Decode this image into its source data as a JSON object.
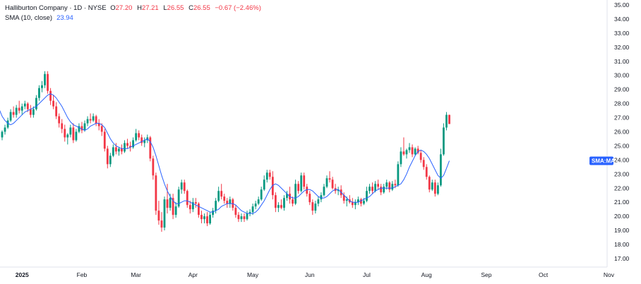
{
  "legend": {
    "symbol": "Halliburton Company · 1D · NYSE",
    "open_key": "O",
    "open": "27.20",
    "high_key": "H",
    "high": "27.21",
    "low_key": "L",
    "low": "26.55",
    "close_key": "C",
    "close": "26.55",
    "change": "−0.67 (−2.46%)",
    "sma_label": "SMA (10, close)",
    "sma_value": "23.94"
  },
  "badge_label": "SMA:MA",
  "colors": {
    "up": "#089981",
    "down": "#f23645",
    "sma": "#2962ff",
    "badge": "#2962ff"
  },
  "chart_data": {
    "type": "candlestick",
    "y_ticks": [
      "17.00",
      "18.00",
      "19.00",
      "20.00",
      "21.00",
      "22.00",
      "23.00",
      "24.00",
      "25.00",
      "26.00",
      "27.00",
      "28.00",
      "29.00",
      "30.00",
      "31.00",
      "32.00",
      "33.00",
      "34.00",
      "35.00"
    ],
    "ylim": [
      16.5,
      35.2
    ],
    "month_labels": [
      {
        "label": "2025",
        "index": 7
      },
      {
        "label": "Feb",
        "index": 28
      },
      {
        "label": "Mar",
        "index": 47
      },
      {
        "label": "Apr",
        "index": 67
      },
      {
        "label": "May",
        "index": 88
      },
      {
        "label": "Jun",
        "index": 108
      },
      {
        "label": "Jul",
        "index": 128
      },
      {
        "label": "Aug",
        "index": 149
      },
      {
        "label": "Sep",
        "index": 170
      },
      {
        "label": "Oct",
        "index": 190
      },
      {
        "label": "Nov",
        "index": 213
      }
    ],
    "candles": [
      [
        25.6,
        26.1,
        25.4,
        26.0
      ],
      [
        26.0,
        26.5,
        25.8,
        26.3
      ],
      [
        26.3,
        27.0,
        26.2,
        26.8
      ],
      [
        26.8,
        27.6,
        26.7,
        27.4
      ],
      [
        27.4,
        27.8,
        27.0,
        27.2
      ],
      [
        27.2,
        27.9,
        27.0,
        27.7
      ],
      [
        27.7,
        28.2,
        27.3,
        27.5
      ],
      [
        27.5,
        28.0,
        27.2,
        27.8
      ],
      [
        27.8,
        28.2,
        27.6,
        28.0
      ],
      [
        28.0,
        28.1,
        27.4,
        27.6
      ],
      [
        27.6,
        27.9,
        27.0,
        27.2
      ],
      [
        27.2,
        27.8,
        27.0,
        27.6
      ],
      [
        27.6,
        28.6,
        27.5,
        28.4
      ],
      [
        28.4,
        29.3,
        28.2,
        29.1
      ],
      [
        29.1,
        29.6,
        28.8,
        29.3
      ],
      [
        29.3,
        30.3,
        29.1,
        30.1
      ],
      [
        30.1,
        30.3,
        28.7,
        28.9
      ],
      [
        28.9,
        29.1,
        27.9,
        28.2
      ],
      [
        28.2,
        28.6,
        27.6,
        27.8
      ],
      [
        27.8,
        28.1,
        26.9,
        27.1
      ],
      [
        27.1,
        27.3,
        26.3,
        26.6
      ],
      [
        26.6,
        26.9,
        25.9,
        26.2
      ],
      [
        26.2,
        26.5,
        25.3,
        25.6
      ],
      [
        25.6,
        25.9,
        25.1,
        25.8
      ],
      [
        25.8,
        26.5,
        25.6,
        26.3
      ],
      [
        26.3,
        26.6,
        25.2,
        25.4
      ],
      [
        25.4,
        26.2,
        25.3,
        26.0
      ],
      [
        26.0,
        26.6,
        25.9,
        26.4
      ],
      [
        26.4,
        26.7,
        25.9,
        26.1
      ],
      [
        26.1,
        26.8,
        26.0,
        26.6
      ],
      [
        26.6,
        27.1,
        26.4,
        26.9
      ],
      [
        26.9,
        27.3,
        26.6,
        26.8
      ],
      [
        26.8,
        27.3,
        26.7,
        27.1
      ],
      [
        27.1,
        27.2,
        26.4,
        26.6
      ],
      [
        26.6,
        26.9,
        26.1,
        26.4
      ],
      [
        26.4,
        26.6,
        25.7,
        26.0
      ],
      [
        26.0,
        26.2,
        24.6,
        24.8
      ],
      [
        24.8,
        25.0,
        23.4,
        23.7
      ],
      [
        23.7,
        24.5,
        23.5,
        24.3
      ],
      [
        24.3,
        25.1,
        24.2,
        24.9
      ],
      [
        24.9,
        25.2,
        24.4,
        24.6
      ],
      [
        24.6,
        24.9,
        24.3,
        24.8
      ],
      [
        24.8,
        25.1,
        24.4,
        24.6
      ],
      [
        24.6,
        25.4,
        24.5,
        25.2
      ],
      [
        25.2,
        25.5,
        24.8,
        25.0
      ],
      [
        25.0,
        25.3,
        24.6,
        24.9
      ],
      [
        24.9,
        25.6,
        24.8,
        25.4
      ],
      [
        25.4,
        26.2,
        25.3,
        25.9
      ],
      [
        25.9,
        26.1,
        25.4,
        25.6
      ],
      [
        25.6,
        25.8,
        25.0,
        25.2
      ],
      [
        25.2,
        25.6,
        24.9,
        25.4
      ],
      [
        25.4,
        25.8,
        25.2,
        25.6
      ],
      [
        25.6,
        25.7,
        23.9,
        24.1
      ],
      [
        24.1,
        24.3,
        22.6,
        22.9
      ],
      [
        22.9,
        23.1,
        20.1,
        20.4
      ],
      [
        20.4,
        21.1,
        19.4,
        19.7
      ],
      [
        19.7,
        20.3,
        18.9,
        19.2
      ],
      [
        19.2,
        21.4,
        19.0,
        21.2
      ],
      [
        21.2,
        22.3,
        20.2,
        20.6
      ],
      [
        20.6,
        21.6,
        20.4,
        21.3
      ],
      [
        21.3,
        21.6,
        19.8,
        20.1
      ],
      [
        20.1,
        21.0,
        19.9,
        20.7
      ],
      [
        20.7,
        22.1,
        20.6,
        21.9
      ],
      [
        21.9,
        22.6,
        21.6,
        22.4
      ],
      [
        22.4,
        22.6,
        21.6,
        21.8
      ],
      [
        21.8,
        21.9,
        20.6,
        20.8
      ],
      [
        20.8,
        21.1,
        20.2,
        20.5
      ],
      [
        20.5,
        21.3,
        20.3,
        21.0
      ],
      [
        21.0,
        21.3,
        20.6,
        20.9
      ],
      [
        20.9,
        21.0,
        19.9,
        20.1
      ],
      [
        20.1,
        20.4,
        19.5,
        19.8
      ],
      [
        19.8,
        20.2,
        19.5,
        20.0
      ],
      [
        20.0,
        20.3,
        19.3,
        19.5
      ],
      [
        19.5,
        20.3,
        19.4,
        20.1
      ],
      [
        20.1,
        20.6,
        19.9,
        20.4
      ],
      [
        20.4,
        21.3,
        20.2,
        21.1
      ],
      [
        21.1,
        22.1,
        21.0,
        21.8
      ],
      [
        21.8,
        22.3,
        21.2,
        21.4
      ],
      [
        21.4,
        21.6,
        20.9,
        21.1
      ],
      [
        21.1,
        21.3,
        20.6,
        20.9
      ],
      [
        20.9,
        21.4,
        20.6,
        21.2
      ],
      [
        21.2,
        21.3,
        20.4,
        20.6
      ],
      [
        20.6,
        20.8,
        19.9,
        20.1
      ],
      [
        20.1,
        20.3,
        19.6,
        19.8
      ],
      [
        19.8,
        20.2,
        19.6,
        20.0
      ],
      [
        20.0,
        20.2,
        19.6,
        19.8
      ],
      [
        19.8,
        20.4,
        19.7,
        20.2
      ],
      [
        20.2,
        20.5,
        20.0,
        20.3
      ],
      [
        20.3,
        20.9,
        20.1,
        20.7
      ],
      [
        20.7,
        21.1,
        20.5,
        20.9
      ],
      [
        20.9,
        21.4,
        20.8,
        21.2
      ],
      [
        21.2,
        22.1,
        21.1,
        21.9
      ],
      [
        21.9,
        22.9,
        21.8,
        22.6
      ],
      [
        22.6,
        23.3,
        22.4,
        23.1
      ],
      [
        23.1,
        23.3,
        22.6,
        22.8
      ],
      [
        22.8,
        23.2,
        21.2,
        21.5
      ],
      [
        21.5,
        21.7,
        20.3,
        20.6
      ],
      [
        20.6,
        21.0,
        20.3,
        20.8
      ],
      [
        20.8,
        21.2,
        20.5,
        20.6
      ],
      [
        20.6,
        21.5,
        20.4,
        21.3
      ],
      [
        21.3,
        21.8,
        21.1,
        21.6
      ],
      [
        21.6,
        22.1,
        20.9,
        21.2
      ],
      [
        21.2,
        21.4,
        20.7,
        20.9
      ],
      [
        20.9,
        22.6,
        20.8,
        22.3
      ],
      [
        22.3,
        22.5,
        21.6,
        21.8
      ],
      [
        21.8,
        23.1,
        21.7,
        22.9
      ],
      [
        22.9,
        23.1,
        21.9,
        22.1
      ],
      [
        22.1,
        22.3,
        21.4,
        21.6
      ],
      [
        21.6,
        21.8,
        20.8,
        21.0
      ],
      [
        21.0,
        21.2,
        20.1,
        20.4
      ],
      [
        20.4,
        21.1,
        20.2,
        20.9
      ],
      [
        20.9,
        21.4,
        20.7,
        21.2
      ],
      [
        21.2,
        21.7,
        21.0,
        21.5
      ],
      [
        21.5,
        22.3,
        21.4,
        22.1
      ],
      [
        22.1,
        22.9,
        22.0,
        22.7
      ],
      [
        22.7,
        23.2,
        22.4,
        22.6
      ],
      [
        22.6,
        22.8,
        21.9,
        22.0
      ],
      [
        22.0,
        22.3,
        21.6,
        21.8
      ],
      [
        21.8,
        22.1,
        21.5,
        21.9
      ],
      [
        21.9,
        22.2,
        21.3,
        21.5
      ],
      [
        21.5,
        21.7,
        20.9,
        21.1
      ],
      [
        21.1,
        21.4,
        20.7,
        21.2
      ],
      [
        21.2,
        21.5,
        20.9,
        21.0
      ],
      [
        21.0,
        21.3,
        20.6,
        20.8
      ],
      [
        20.8,
        21.2,
        20.5,
        21.0
      ],
      [
        21.0,
        21.4,
        20.8,
        21.2
      ],
      [
        21.2,
        21.3,
        20.7,
        20.9
      ],
      [
        20.9,
        21.3,
        20.8,
        21.1
      ],
      [
        21.1,
        22.1,
        21.0,
        21.8
      ],
      [
        21.8,
        22.3,
        21.6,
        22.1
      ],
      [
        22.1,
        22.4,
        21.6,
        21.8
      ],
      [
        21.8,
        22.5,
        21.7,
        22.3
      ],
      [
        22.3,
        22.6,
        21.9,
        22.1
      ],
      [
        22.1,
        22.3,
        21.5,
        21.7
      ],
      [
        21.7,
        22.3,
        21.6,
        22.1
      ],
      [
        22.1,
        22.6,
        21.9,
        22.4
      ],
      [
        22.4,
        22.5,
        21.7,
        21.9
      ],
      [
        21.9,
        22.5,
        21.8,
        22.3
      ],
      [
        22.3,
        22.6,
        22.0,
        22.2
      ],
      [
        22.2,
        23.9,
        22.1,
        23.7
      ],
      [
        23.7,
        24.9,
        23.5,
        24.6
      ],
      [
        24.6,
        25.6,
        24.3,
        24.4
      ],
      [
        24.4,
        24.8,
        24.1,
        24.7
      ],
      [
        24.7,
        25.2,
        24.5,
        24.9
      ],
      [
        24.9,
        25.1,
        24.2,
        24.4
      ],
      [
        24.4,
        24.9,
        24.3,
        24.8
      ],
      [
        24.8,
        25.0,
        24.4,
        24.5
      ],
      [
        24.5,
        24.7,
        23.8,
        24.0
      ],
      [
        24.0,
        24.2,
        23.3,
        23.5
      ],
      [
        23.5,
        23.7,
        22.6,
        22.8
      ],
      [
        22.8,
        22.9,
        21.7,
        21.9
      ],
      [
        21.9,
        22.6,
        21.8,
        22.4
      ],
      [
        22.4,
        22.6,
        21.4,
        21.6
      ],
      [
        21.6,
        22.4,
        21.5,
        22.2
      ],
      [
        22.2,
        24.8,
        22.1,
        24.4
      ],
      [
        24.4,
        26.6,
        24.3,
        26.3
      ],
      [
        26.3,
        27.4,
        26.1,
        27.2
      ],
      [
        27.2,
        27.21,
        26.55,
        26.55
      ]
    ],
    "sma_10": [
      [
        -1,
        27.6
      ],
      [
        0,
        27.1
      ],
      [
        1,
        26.8
      ],
      [
        2,
        26.6
      ],
      [
        3,
        26.5
      ],
      [
        4,
        26.6
      ],
      [
        5,
        26.8
      ],
      [
        6,
        27.0
      ],
      [
        7,
        27.2
      ],
      [
        8,
        27.4
      ],
      [
        9,
        27.5
      ],
      [
        10,
        27.6
      ],
      [
        11,
        27.7
      ],
      [
        12,
        27.8
      ],
      [
        13,
        28.0
      ],
      [
        14,
        28.2
      ],
      [
        15,
        28.4
      ],
      [
        16,
        28.6
      ],
      [
        17,
        28.7
      ],
      [
        18,
        28.6
      ],
      [
        19,
        28.4
      ],
      [
        20,
        28.1
      ],
      [
        21,
        27.8
      ],
      [
        22,
        27.4
      ],
      [
        23,
        27.0
      ],
      [
        24,
        26.7
      ],
      [
        25,
        26.5
      ],
      [
        26,
        26.4
      ],
      [
        27,
        26.3
      ],
      [
        28,
        26.2
      ],
      [
        29,
        26.1
      ],
      [
        30,
        26.2
      ],
      [
        31,
        26.4
      ],
      [
        32,
        26.5
      ],
      [
        33,
        26.6
      ],
      [
        34,
        26.6
      ],
      [
        35,
        26.5
      ],
      [
        36,
        26.3
      ],
      [
        37,
        25.9
      ],
      [
        38,
        25.5
      ],
      [
        39,
        25.2
      ],
      [
        40,
        25.0
      ],
      [
        41,
        24.9
      ],
      [
        42,
        24.8
      ],
      [
        43,
        24.8
      ],
      [
        44,
        24.8
      ],
      [
        45,
        24.9
      ],
      [
        46,
        25.0
      ],
      [
        47,
        25.1
      ],
      [
        48,
        25.2
      ],
      [
        49,
        25.3
      ],
      [
        50,
        25.4
      ],
      [
        51,
        25.5
      ],
      [
        52,
        25.3
      ],
      [
        53,
        24.9
      ],
      [
        54,
        24.3
      ],
      [
        55,
        23.6
      ],
      [
        56,
        22.9
      ],
      [
        57,
        22.3
      ],
      [
        58,
        21.8
      ],
      [
        59,
        21.4
      ],
      [
        60,
        21.1
      ],
      [
        61,
        20.9
      ],
      [
        62,
        20.9
      ],
      [
        63,
        21.0
      ],
      [
        64,
        21.1
      ],
      [
        65,
        21.1
      ],
      [
        66,
        21.0
      ],
      [
        67,
        20.9
      ],
      [
        68,
        20.8
      ],
      [
        69,
        20.7
      ],
      [
        70,
        20.6
      ],
      [
        71,
        20.5
      ],
      [
        72,
        20.4
      ],
      [
        73,
        20.3
      ],
      [
        74,
        20.3
      ],
      [
        75,
        20.4
      ],
      [
        76,
        20.5
      ],
      [
        77,
        20.7
      ],
      [
        78,
        20.8
      ],
      [
        79,
        20.9
      ],
      [
        80,
        20.9
      ],
      [
        81,
        20.9
      ],
      [
        82,
        20.8
      ],
      [
        83,
        20.6
      ],
      [
        84,
        20.4
      ],
      [
        85,
        20.3
      ],
      [
        86,
        20.2
      ],
      [
        87,
        20.2
      ],
      [
        88,
        20.2
      ],
      [
        89,
        20.3
      ],
      [
        90,
        20.5
      ],
      [
        91,
        20.8
      ],
      [
        92,
        21.1
      ],
      [
        93,
        21.5
      ],
      [
        94,
        21.9
      ],
      [
        95,
        22.2
      ],
      [
        96,
        22.3
      ],
      [
        97,
        22.2
      ],
      [
        98,
        22.0
      ],
      [
        99,
        21.8
      ],
      [
        100,
        21.6
      ],
      [
        101,
        21.4
      ],
      [
        102,
        21.3
      ],
      [
        103,
        21.3
      ],
      [
        104,
        21.4
      ],
      [
        105,
        21.6
      ],
      [
        106,
        21.8
      ],
      [
        107,
        21.9
      ],
      [
        108,
        21.9
      ],
      [
        109,
        21.8
      ],
      [
        110,
        21.6
      ],
      [
        111,
        21.4
      ],
      [
        112,
        21.3
      ],
      [
        113,
        21.3
      ],
      [
        114,
        21.4
      ],
      [
        115,
        21.6
      ],
      [
        116,
        21.8
      ],
      [
        117,
        21.9
      ],
      [
        118,
        21.9
      ],
      [
        119,
        21.7
      ],
      [
        120,
        21.5
      ],
      [
        121,
        21.3
      ],
      [
        122,
        21.1
      ],
      [
        123,
        21.0
      ],
      [
        124,
        21.0
      ],
      [
        125,
        21.0
      ],
      [
        126,
        21.1
      ],
      [
        127,
        21.2
      ],
      [
        128,
        21.3
      ],
      [
        129,
        21.4
      ],
      [
        130,
        21.6
      ],
      [
        131,
        21.8
      ],
      [
        132,
        21.9
      ],
      [
        133,
        22.0
      ],
      [
        134,
        22.0
      ],
      [
        135,
        22.0
      ],
      [
        136,
        22.0
      ],
      [
        137,
        22.0
      ],
      [
        138,
        22.1
      ],
      [
        139,
        22.2
      ],
      [
        140,
        22.3
      ],
      [
        141,
        22.6
      ],
      [
        142,
        23.0
      ],
      [
        143,
        23.5
      ],
      [
        144,
        23.9
      ],
      [
        145,
        24.3
      ],
      [
        146,
        24.6
      ],
      [
        147,
        24.7
      ],
      [
        148,
        24.6
      ],
      [
        149,
        24.4
      ],
      [
        150,
        24.1
      ],
      [
        151,
        23.7
      ],
      [
        152,
        23.3
      ],
      [
        153,
        22.9
      ],
      [
        154,
        22.7
      ],
      [
        155,
        22.9
      ],
      [
        156,
        23.4
      ],
      [
        157,
        23.94
      ]
    ]
  }
}
